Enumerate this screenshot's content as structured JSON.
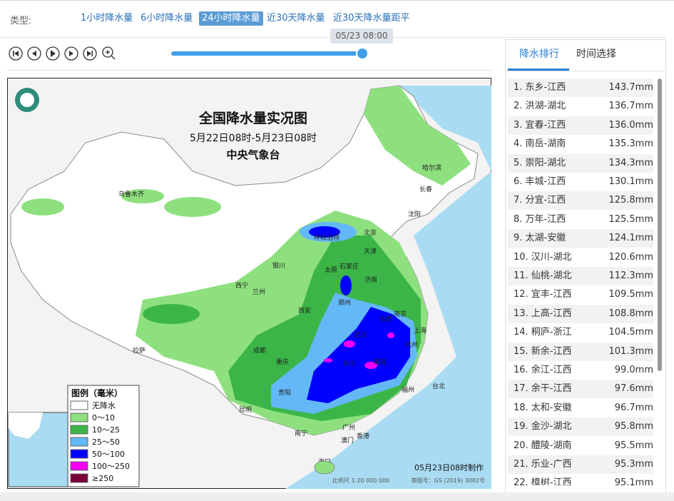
{
  "filter": {
    "label": "类型:",
    "tabs": [
      "1小时降水量",
      "6小时降水量",
      "24小时降水量",
      "近30天降水量",
      "近30天降水量距平"
    ],
    "active": 2
  },
  "player": {
    "time": "05/23 08:00"
  },
  "panel": {
    "tabs": [
      "降水排行",
      "时间选择"
    ],
    "ranking": [
      {
        "name": "1. 东乡-江西",
        "value": "143.7mm"
      },
      {
        "name": "2. 洪湖-湖北",
        "value": "136.7mm"
      },
      {
        "name": "3. 宜春-江西",
        "value": "136.0mm"
      },
      {
        "name": "4. 南岳-湖南",
        "value": "135.3mm"
      },
      {
        "name": "5. 崇阳-湖北",
        "value": "134.3mm"
      },
      {
        "name": "6. 丰城-江西",
        "value": "130.1mm"
      },
      {
        "name": "7. 分宜-江西",
        "value": "125.8mm"
      },
      {
        "name": "8. 万年-江西",
        "value": "125.5mm"
      },
      {
        "name": "9. 太湖-安徽",
        "value": "124.1mm"
      },
      {
        "name": "10. 汉川-湖北",
        "value": "120.6mm"
      },
      {
        "name": "11. 仙桃-湖北",
        "value": "112.3mm"
      },
      {
        "name": "12. 宜丰-江西",
        "value": "109.5mm"
      },
      {
        "name": "13. 上高-江西",
        "value": "108.8mm"
      },
      {
        "name": "14. 桐庐-浙江",
        "value": "104.5mm"
      },
      {
        "name": "15. 新余-江西",
        "value": "101.3mm"
      },
      {
        "name": "16. 余江-江西",
        "value": "99.0mm"
      },
      {
        "name": "17. 余干-江西",
        "value": "97.6mm"
      },
      {
        "name": "18. 太和-安徽",
        "value": "96.7mm"
      },
      {
        "name": "19. 金沙-湖北",
        "value": "95.8mm"
      },
      {
        "name": "20. 醴陵-湖南",
        "value": "95.5mm"
      },
      {
        "name": "21. 乐业-广西",
        "value": "95.3mm"
      },
      {
        "name": "22. 樟树-江西",
        "value": "95.1mm"
      }
    ]
  },
  "map": {
    "title": "全国降水量实况图",
    "period": "5月22日08时-5月23日08时",
    "issuer": "中央气象台",
    "legend": {
      "title": "图例（毫米）",
      "items": [
        {
          "label": "无降水",
          "color": "#ffffff"
        },
        {
          "label": "0～10",
          "color": "#8ee07f"
        },
        {
          "label": "10～25",
          "color": "#3bb548"
        },
        {
          "label": "25～50",
          "color": "#63b8f7"
        },
        {
          "label": "50～100",
          "color": "#0000fe"
        },
        {
          "label": "100～250",
          "color": "#f500f2"
        },
        {
          "label": "≥250",
          "color": "#7b0037"
        }
      ]
    },
    "made": "05月23日08时制作",
    "scale": "比例尺 1:20 000 000",
    "approval": "审图号：GS (2019) 3082号",
    "cities": [
      "乌鲁木齐",
      "哈尔滨",
      "长春",
      "沈阳",
      "呼和浩特",
      "北京",
      "天津",
      "银川",
      "太原",
      "石家庄",
      "济南",
      "西宁",
      "兰州",
      "郑州",
      "西安",
      "合肥",
      "南京",
      "上海",
      "武汉",
      "杭州",
      "成都",
      "重庆",
      "拉萨",
      "长沙",
      "南昌",
      "福州",
      "台北",
      "贵阳",
      "昆明",
      "南宁",
      "广州",
      "香港",
      "澳门",
      "海口"
    ]
  }
}
